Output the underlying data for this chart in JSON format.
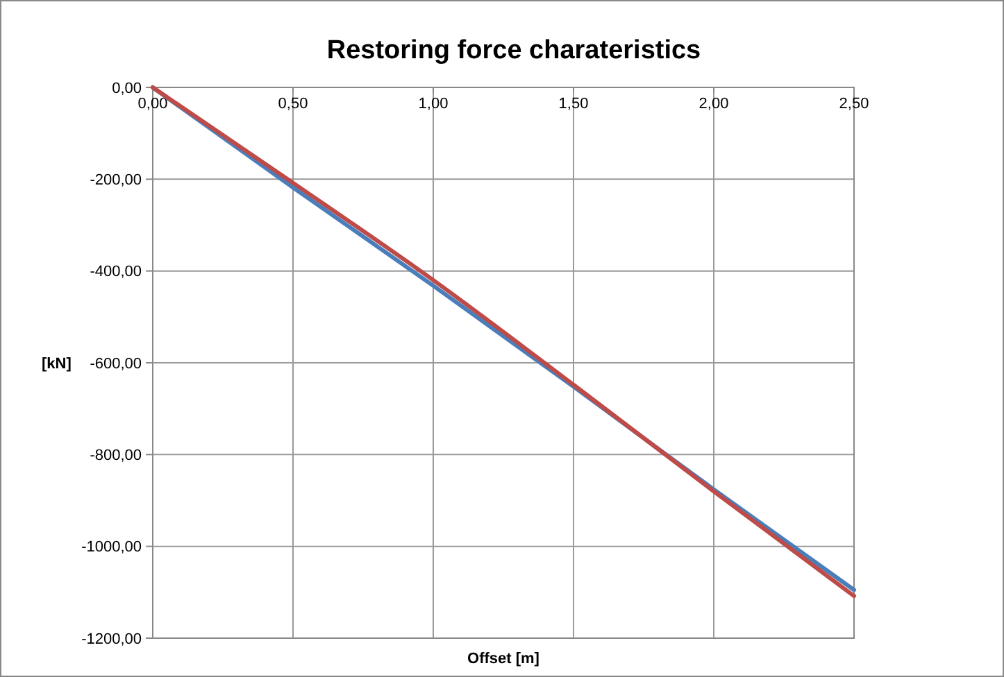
{
  "chart_data": {
    "type": "line",
    "title": "Restoring force charateristics",
    "xlabel": "Offset [m]",
    "ylabel": "[kN]",
    "xlim": [
      0,
      2.5
    ],
    "ylim": [
      -1200,
      0
    ],
    "xticks": [
      {
        "value": 0,
        "label": "0,00"
      },
      {
        "value": 0.5,
        "label": "0,50"
      },
      {
        "value": 1,
        "label": "1,00"
      },
      {
        "value": 1.5,
        "label": "1,50"
      },
      {
        "value": 2,
        "label": "2,00"
      },
      {
        "value": 2.5,
        "label": "2,50"
      }
    ],
    "yticks": [
      {
        "value": 0,
        "label": "0,00"
      },
      {
        "value": -200,
        "label": "-200,00"
      },
      {
        "value": -400,
        "label": "-400,00"
      },
      {
        "value": -600,
        "label": "-600,00"
      },
      {
        "value": -800,
        "label": "-800,00"
      },
      {
        "value": -1000,
        "label": "-1000,00"
      },
      {
        "value": -1200,
        "label": "-1200,00"
      }
    ],
    "grid": true,
    "marker": "none",
    "line_style": "solid",
    "x": [
      0,
      0.5,
      1,
      1.5,
      2,
      2.5
    ],
    "series": [
      {
        "color": "#4a7ebb",
        "values": [
          0,
          -218,
          -432,
          -652,
          -876,
          -1095
        ]
      },
      {
        "color": "#be4b48",
        "values": [
          0,
          -208,
          -420,
          -648,
          -880,
          -1108
        ]
      }
    ]
  }
}
